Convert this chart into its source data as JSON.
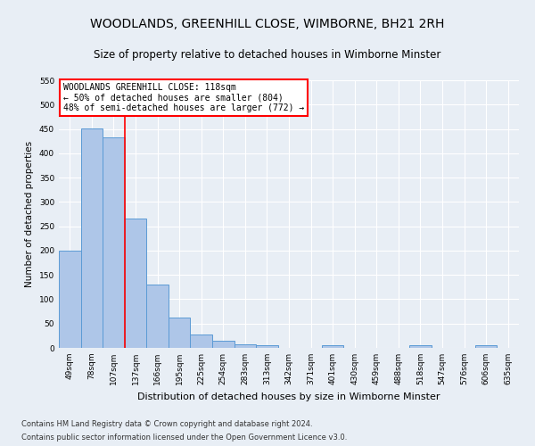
{
  "title": "WOODLANDS, GREENHILL CLOSE, WIMBORNE, BH21 2RH",
  "subtitle": "Size of property relative to detached houses in Wimborne Minster",
  "xlabel": "Distribution of detached houses by size in Wimborne Minster",
  "ylabel": "Number of detached properties",
  "footer_line1": "Contains HM Land Registry data © Crown copyright and database right 2024.",
  "footer_line2": "Contains public sector information licensed under the Open Government Licence v3.0.",
  "categories": [
    "49sqm",
    "78sqm",
    "107sqm",
    "137sqm",
    "166sqm",
    "195sqm",
    "225sqm",
    "254sqm",
    "283sqm",
    "313sqm",
    "342sqm",
    "371sqm",
    "401sqm",
    "430sqm",
    "459sqm",
    "488sqm",
    "518sqm",
    "547sqm",
    "576sqm",
    "606sqm",
    "635sqm"
  ],
  "values": [
    200,
    451,
    432,
    265,
    130,
    62,
    28,
    14,
    8,
    6,
    0,
    0,
    6,
    0,
    0,
    0,
    5,
    0,
    0,
    5,
    0
  ],
  "bar_color": "#aec6e8",
  "bar_edge_color": "#5b9bd5",
  "vline_x": 2.5,
  "vline_color": "red",
  "annotation_text": "WOODLANDS GREENHILL CLOSE: 118sqm\n← 50% of detached houses are smaller (804)\n48% of semi-detached houses are larger (772) →",
  "annotation_box_color": "white",
  "annotation_box_edge": "red",
  "ylim": [
    0,
    550
  ],
  "yticks": [
    0,
    50,
    100,
    150,
    200,
    250,
    300,
    350,
    400,
    450,
    500,
    550
  ],
  "bg_color": "#e8eef5",
  "grid_color": "white",
  "title_fontsize": 10,
  "subtitle_fontsize": 8.5,
  "ylabel_fontsize": 7.5,
  "xlabel_fontsize": 8,
  "tick_fontsize": 6.5,
  "footer_fontsize": 6
}
